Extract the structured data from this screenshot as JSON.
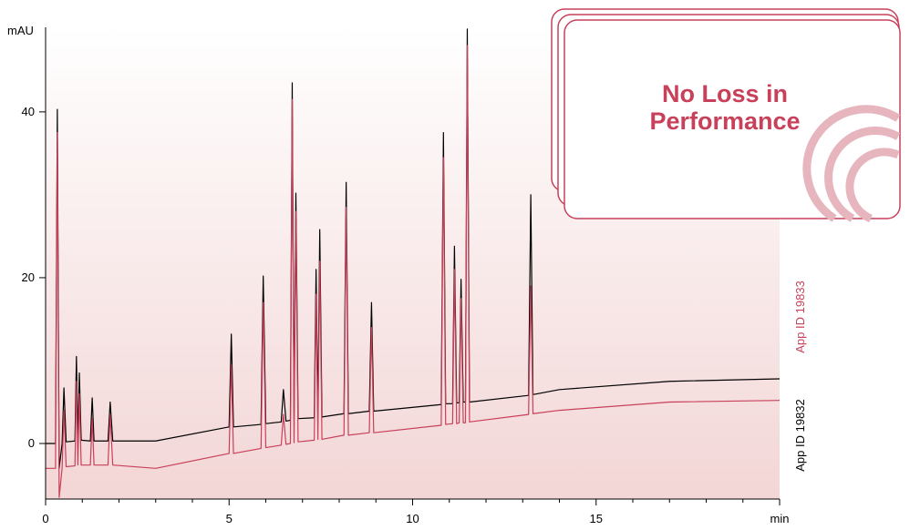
{
  "chart_data": {
    "type": "line",
    "y_label": "mAU",
    "annotation": "No Loss in Performance",
    "x": [
      0,
      0.27,
      0.32,
      0.37,
      0.45,
      0.5,
      0.56,
      0.8,
      0.84,
      0.88,
      0.92,
      0.97,
      1.22,
      1.27,
      1.32,
      1.7,
      1.76,
      1.83,
      3,
      5.0,
      5.06,
      5.12,
      5.87,
      5.93,
      6.0,
      6.42,
      6.48,
      6.55,
      6.67,
      6.72,
      6.77,
      6.82,
      6.88,
      7.32,
      7.37,
      7.42,
      7.47,
      7.53,
      8.13,
      8.19,
      8.25,
      8.82,
      8.88,
      8.94,
      10.78,
      10.84,
      10.9,
      11.09,
      11.14,
      11.2,
      11.27,
      11.32,
      11.38,
      11.44,
      11.49,
      11.55,
      13.16,
      13.22,
      13.28,
      14,
      17,
      20
    ],
    "series": [
      {
        "name": "App ID 19832",
        "color": "#000000",
        "values": [
          0,
          0,
          40.3,
          -3,
          0,
          6.7,
          0.2,
          0.3,
          10.5,
          0.5,
          8.5,
          0.4,
          0.3,
          5.5,
          0.3,
          0.3,
          5,
          0.3,
          0.3,
          2,
          13.2,
          2,
          2.3,
          20.2,
          2.4,
          2.6,
          6.5,
          2.7,
          2.8,
          43.5,
          3,
          30.2,
          3,
          3.1,
          21,
          3.2,
          25.8,
          3.2,
          3.6,
          31.5,
          3.6,
          3.9,
          17,
          3.9,
          4.7,
          37.5,
          4.8,
          4.8,
          23.8,
          4.9,
          4.9,
          19.8,
          5,
          5,
          50,
          5,
          5.8,
          30,
          5.9,
          6.5,
          7.5,
          7.8
        ]
      },
      {
        "name": "App ID 19833",
        "color": "#c8405a",
        "values": [
          -3,
          -3,
          37.5,
          -6.5,
          -3,
          4,
          -2.8,
          -2.7,
          7.5,
          -2.6,
          6,
          -2.6,
          -2.6,
          3,
          -2.6,
          -2.6,
          3.5,
          -2.6,
          -3,
          -1.2,
          9.5,
          -1.2,
          -0.6,
          17,
          -0.5,
          -0.2,
          3.5,
          -0.1,
          0,
          41.5,
          0.1,
          28,
          0.2,
          0.4,
          18,
          0.5,
          22,
          0.5,
          1,
          28.5,
          1,
          1.3,
          14,
          1.3,
          2.2,
          34.5,
          2.3,
          2.4,
          21,
          2.4,
          2.5,
          17.5,
          2.5,
          2.5,
          48,
          2.6,
          3.5,
          19,
          3.6,
          4,
          5,
          5.2
        ]
      }
    ],
    "xlim": [
      0,
      20
    ],
    "xticks": [
      0,
      5,
      10,
      15,
      {
        "value": 20,
        "label": "min"
      }
    ],
    "xminorticks": [
      1,
      2,
      3,
      4,
      6,
      7,
      8,
      9,
      11,
      12,
      13,
      14,
      16,
      17,
      18,
      19
    ],
    "ylim": [
      -6.7,
      50.2
    ],
    "yticks": [
      0,
      20,
      40
    ]
  }
}
